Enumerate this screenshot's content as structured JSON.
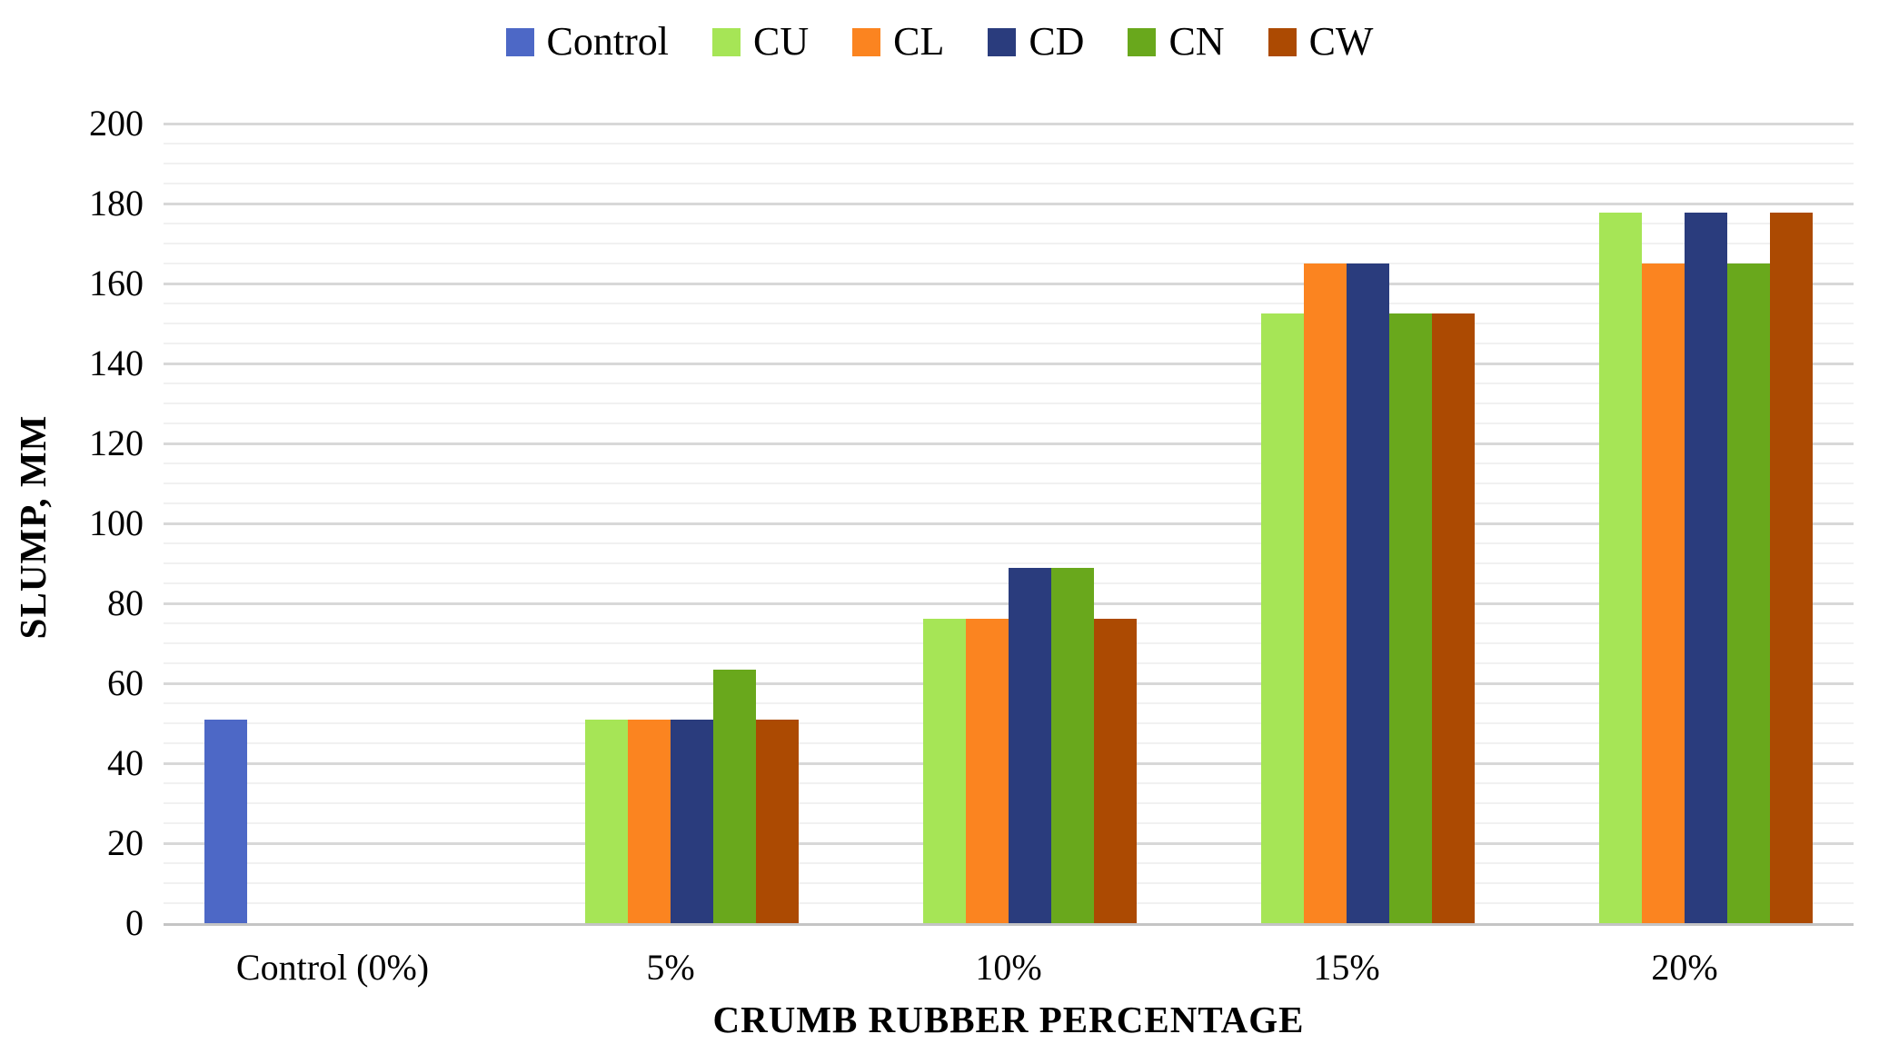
{
  "chart_data": {
    "type": "bar",
    "title": "",
    "xlabel": "CRUMB RUBBER PERCENTAGE",
    "ylabel": "SLUMP, MM",
    "categories": [
      "Control (0%)",
      "5%",
      "10%",
      "15%",
      "20%"
    ],
    "series": [
      {
        "name": "Control",
        "color": "#4D68C6",
        "values": [
          50.8,
          null,
          null,
          null,
          null
        ]
      },
      {
        "name": "CU",
        "color": "#A6E556",
        "values": [
          null,
          50.8,
          76.2,
          152.4,
          177.8
        ]
      },
      {
        "name": "CL",
        "color": "#FB8420",
        "values": [
          null,
          50.8,
          76.2,
          165.1,
          165.1
        ]
      },
      {
        "name": "CD",
        "color": "#2A3C7D",
        "values": [
          null,
          50.8,
          88.9,
          165.1,
          177.8
        ]
      },
      {
        "name": "CN",
        "color": "#69A81C",
        "values": [
          null,
          63.5,
          88.9,
          152.4,
          165.1
        ]
      },
      {
        "name": "CW",
        "color": "#AC4A02",
        "values": [
          null,
          50.8,
          76.2,
          152.4,
          177.8
        ]
      }
    ],
    "ylim": [
      0,
      200
    ],
    "ytick_step": 20,
    "yminor_step": 5,
    "grid": "horizontal major and minor gridlines on",
    "legend_position": "top-center",
    "colors": {
      "major_gridline": "#d8d8d8",
      "minor_gridline": "#f1f1f1",
      "axis_line": "#c4c4c4",
      "text": "#000000"
    }
  }
}
